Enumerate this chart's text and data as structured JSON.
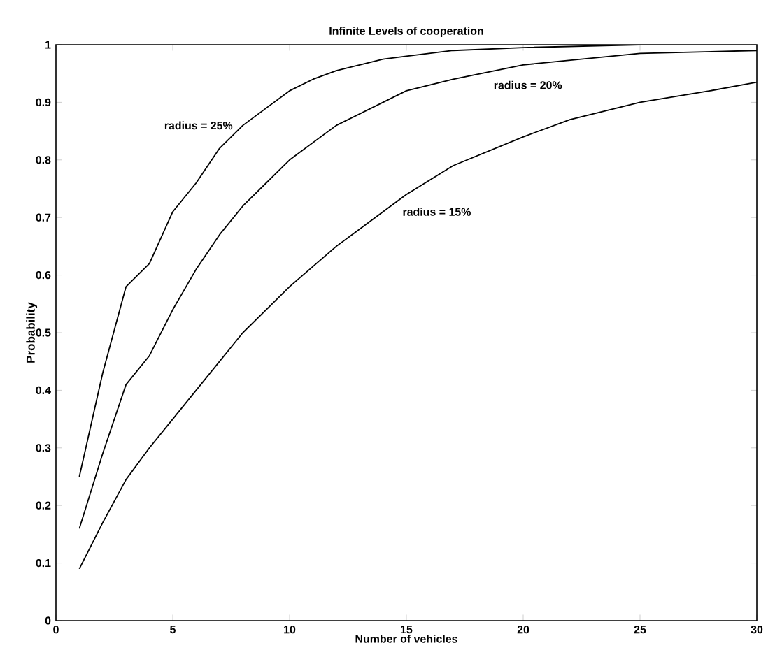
{
  "chart_data": {
    "type": "line",
    "title": "Infinite Levels of cooperation",
    "xlabel": "Number of vehicles",
    "ylabel": "Probability",
    "xlim": [
      0,
      30
    ],
    "ylim": [
      0,
      1
    ],
    "xticks": [
      0,
      5,
      10,
      15,
      20,
      25,
      30
    ],
    "yticks": [
      0,
      0.1,
      0.2,
      0.3,
      0.4,
      0.5,
      0.6,
      0.7,
      0.8,
      0.9,
      1
    ],
    "marker": "none",
    "line_style": "solid",
    "grid": false,
    "legend": false,
    "series": [
      {
        "name": "radius = 25%",
        "color": "#000000",
        "x": [
          1,
          2,
          3,
          4,
          5,
          6,
          7,
          8,
          9,
          10,
          11,
          12,
          13,
          14,
          15,
          17,
          20,
          25,
          30
        ],
        "values": [
          0.25,
          0.43,
          0.58,
          0.62,
          0.71,
          0.76,
          0.82,
          0.86,
          0.89,
          0.92,
          0.94,
          0.955,
          0.965,
          0.975,
          0.98,
          0.99,
          0.995,
          1.0,
          1.0
        ]
      },
      {
        "name": "radius = 20%",
        "color": "#000000",
        "x": [
          1,
          2,
          3,
          4,
          5,
          6,
          7,
          8,
          9,
          10,
          12,
          14,
          15,
          17,
          20,
          25,
          30
        ],
        "values": [
          0.16,
          0.29,
          0.41,
          0.46,
          0.54,
          0.61,
          0.67,
          0.72,
          0.76,
          0.8,
          0.86,
          0.9,
          0.92,
          0.94,
          0.965,
          0.985,
          0.99
        ]
      },
      {
        "name": "radius = 15%",
        "color": "#000000",
        "x": [
          1,
          2,
          3,
          4,
          5,
          6,
          7,
          8,
          9,
          10,
          12,
          14,
          15,
          17,
          20,
          22,
          25,
          28,
          30
        ],
        "values": [
          0.09,
          0.17,
          0.245,
          0.3,
          0.35,
          0.4,
          0.45,
          0.5,
          0.54,
          0.58,
          0.65,
          0.71,
          0.74,
          0.79,
          0.84,
          0.87,
          0.9,
          0.92,
          0.935
        ]
      }
    ]
  }
}
